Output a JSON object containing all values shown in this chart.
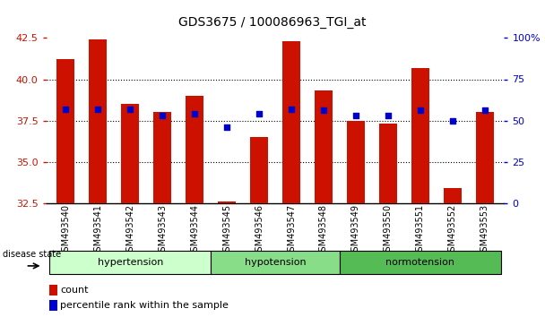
{
  "title": "GDS3675 / 100086963_TGI_at",
  "samples": [
    "GSM493540",
    "GSM493541",
    "GSM493542",
    "GSM493543",
    "GSM493544",
    "GSM493545",
    "GSM493546",
    "GSM493547",
    "GSM493548",
    "GSM493549",
    "GSM493550",
    "GSM493551",
    "GSM493552",
    "GSM493553"
  ],
  "count_values": [
    41.2,
    42.4,
    38.5,
    38.0,
    39.0,
    32.6,
    36.5,
    42.3,
    39.3,
    37.5,
    37.3,
    40.7,
    33.4,
    38.0
  ],
  "percentile_values": [
    57,
    57,
    57,
    53,
    54,
    46,
    54,
    57,
    56,
    53,
    53,
    56,
    50,
    56
  ],
  "groups": [
    {
      "label": "hypertension",
      "start": 0,
      "end": 5,
      "color": "#ccffcc"
    },
    {
      "label": "hypotension",
      "start": 5,
      "end": 9,
      "color": "#88dd88"
    },
    {
      "label": "normotension",
      "start": 9,
      "end": 14,
      "color": "#55bb55"
    }
  ],
  "ylim_left": [
    32.5,
    42.5
  ],
  "ylim_right": [
    0,
    100
  ],
  "yticks_left": [
    32.5,
    35.0,
    37.5,
    40.0,
    42.5
  ],
  "yticks_right": [
    0,
    25,
    50,
    75,
    100
  ],
  "bar_color": "#cc1100",
  "dot_color": "#0000cc",
  "bg_color": "#ffffff",
  "grid_color": "#000000",
  "label_count": "count",
  "label_pct": "percentile rank within the sample",
  "disease_state_label": "disease state",
  "left_axis_color": "#cc1100",
  "right_axis_color": "#0000cc",
  "gridlines_at": [
    35.0,
    37.5,
    40.0
  ]
}
